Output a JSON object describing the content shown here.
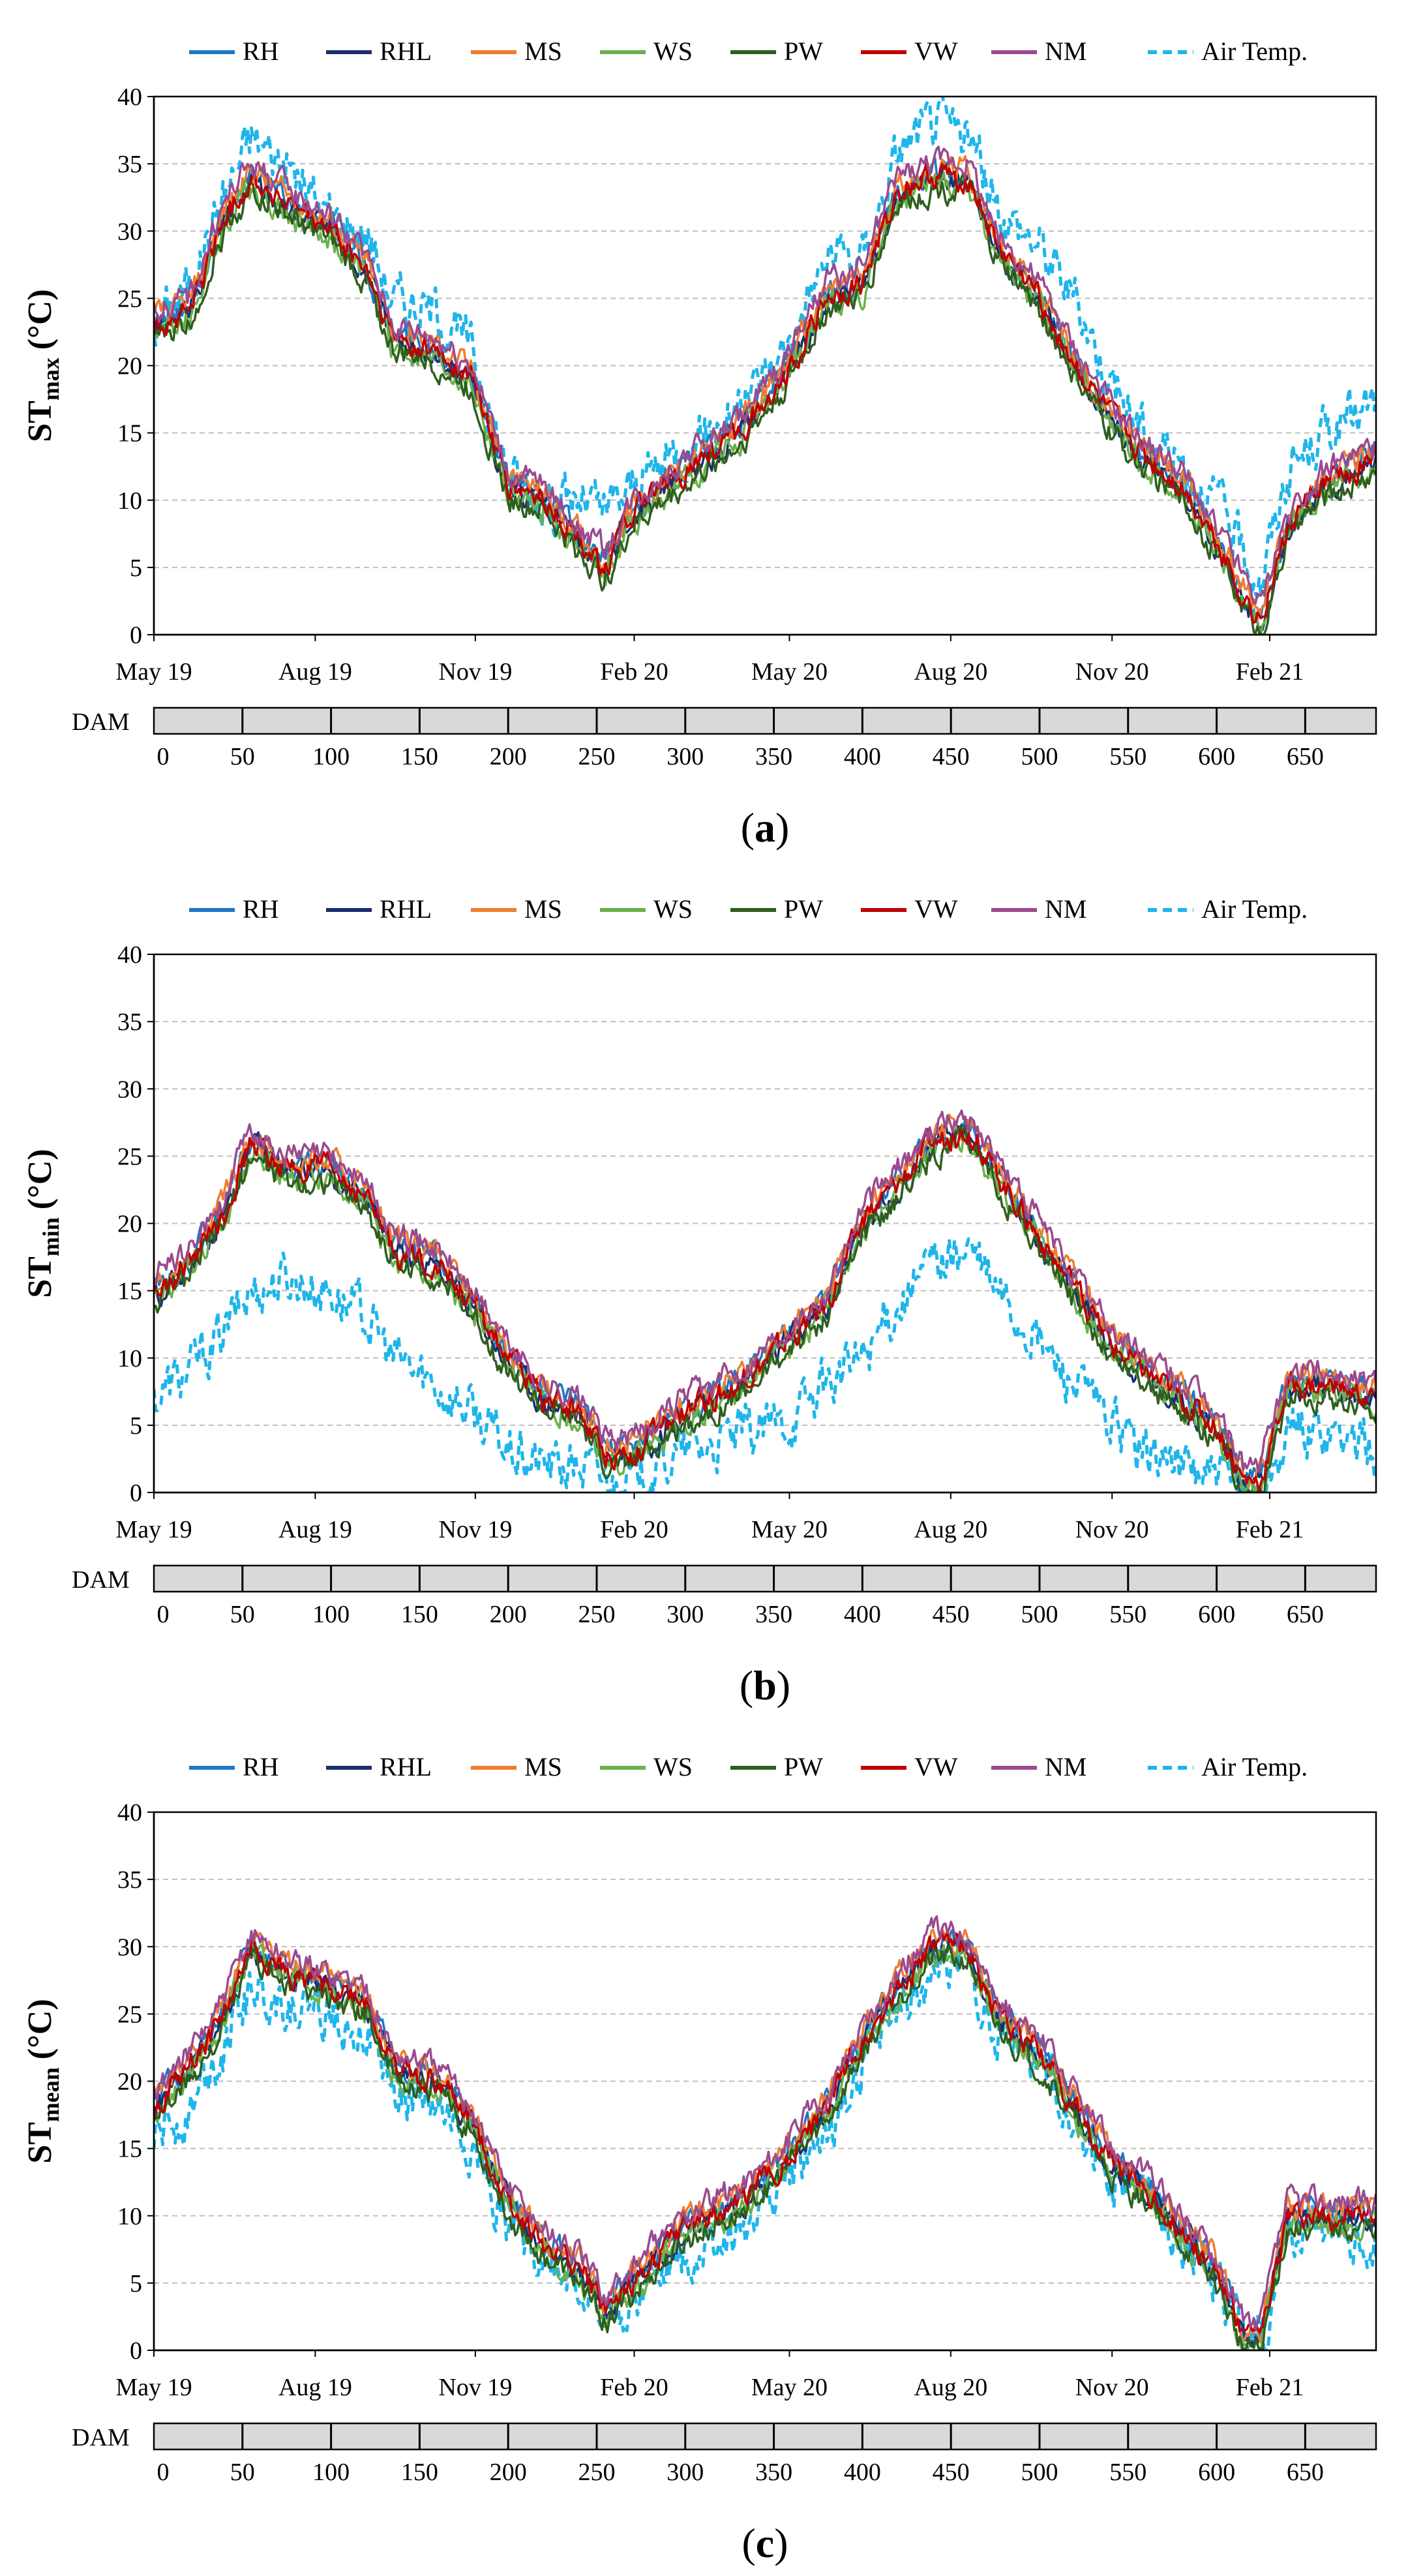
{
  "chart_data": [
    {
      "type": "line",
      "panel_label": "a",
      "ylabel_main": "ST",
      "ylabel_sub": "max",
      "ylabel_unit": "(°C)",
      "ylim": [
        0,
        40
      ],
      "yticks": [
        "0",
        "5",
        "10",
        "15",
        "20",
        "25",
        "30",
        "35",
        "40"
      ],
      "x_tick_labels": [
        "May 19",
        "Aug 19",
        "Nov 19",
        "Feb 20",
        "May 20",
        "Aug 20",
        "Nov 20",
        "Feb 21"
      ],
      "dam_axis_label": "DAM",
      "dam_ticks": [
        "0",
        "50",
        "100",
        "150",
        "200",
        "250",
        "300",
        "350",
        "400",
        "450",
        "500",
        "550",
        "600",
        "650"
      ],
      "legend": [
        "RH",
        "RHL",
        "MS",
        "WS",
        "PW",
        "VW",
        "NM",
        "Air Temp."
      ],
      "dam_range": [
        0,
        690
      ],
      "series_keypoints": {
        "soil": [
          [
            0,
            23
          ],
          [
            20,
            24
          ],
          [
            40,
            31
          ],
          [
            55,
            34
          ],
          [
            75,
            32
          ],
          [
            100,
            30
          ],
          [
            120,
            27
          ],
          [
            135,
            22
          ],
          [
            160,
            21
          ],
          [
            180,
            19
          ],
          [
            200,
            11
          ],
          [
            220,
            10
          ],
          [
            240,
            7
          ],
          [
            255,
            5
          ],
          [
            270,
            9
          ],
          [
            300,
            12
          ],
          [
            330,
            15
          ],
          [
            355,
            19
          ],
          [
            380,
            25
          ],
          [
            400,
            26
          ],
          [
            420,
            33
          ],
          [
            440,
            34
          ],
          [
            460,
            34
          ],
          [
            475,
            29
          ],
          [
            500,
            25
          ],
          [
            520,
            20
          ],
          [
            540,
            16
          ],
          [
            560,
            13
          ],
          [
            580,
            11
          ],
          [
            600,
            7
          ],
          [
            615,
            3
          ],
          [
            625,
            1
          ],
          [
            640,
            8
          ],
          [
            660,
            11
          ],
          [
            690,
            13
          ]
        ],
        "air": [
          [
            0,
            23
          ],
          [
            20,
            26
          ],
          [
            40,
            33
          ],
          [
            55,
            37
          ],
          [
            75,
            35
          ],
          [
            100,
            31
          ],
          [
            120,
            30
          ],
          [
            135,
            25
          ],
          [
            160,
            24
          ],
          [
            180,
            21
          ],
          [
            200,
            12
          ],
          [
            220,
            10
          ],
          [
            240,
            10
          ],
          [
            255,
            9
          ],
          [
            270,
            11
          ],
          [
            300,
            14
          ],
          [
            330,
            17
          ],
          [
            355,
            21
          ],
          [
            380,
            28
          ],
          [
            400,
            28
          ],
          [
            420,
            36
          ],
          [
            440,
            38
          ],
          [
            460,
            37
          ],
          [
            475,
            32
          ],
          [
            500,
            29
          ],
          [
            520,
            25
          ],
          [
            540,
            19
          ],
          [
            560,
            15
          ],
          [
            580,
            13
          ],
          [
            600,
            10
          ],
          [
            615,
            6
          ],
          [
            625,
            4
          ],
          [
            640,
            12
          ],
          [
            660,
            15
          ],
          [
            690,
            17
          ]
        ]
      }
    },
    {
      "type": "line",
      "panel_label": "b",
      "ylabel_main": "ST",
      "ylabel_sub": "min",
      "ylabel_unit": "(°C)",
      "ylim": [
        0,
        40
      ],
      "yticks": [
        "0",
        "5",
        "10",
        "15",
        "20",
        "25",
        "30",
        "35",
        "40"
      ],
      "x_tick_labels": [
        "May 19",
        "Aug 19",
        "Nov 19",
        "Feb 20",
        "May 20",
        "Aug 20",
        "Nov 20",
        "Feb 21"
      ],
      "dam_axis_label": "DAM",
      "dam_ticks": [
        "0",
        "50",
        "100",
        "150",
        "200",
        "250",
        "300",
        "350",
        "400",
        "450",
        "500",
        "550",
        "600",
        "650"
      ],
      "legend": [
        "RH",
        "RHL",
        "MS",
        "WS",
        "PW",
        "VW",
        "NM",
        "Air Temp."
      ],
      "dam_range": [
        0,
        690
      ],
      "series_keypoints": {
        "soil": [
          [
            0,
            15
          ],
          [
            20,
            17
          ],
          [
            40,
            21
          ],
          [
            55,
            26
          ],
          [
            75,
            24
          ],
          [
            100,
            24
          ],
          [
            120,
            22
          ],
          [
            135,
            18
          ],
          [
            160,
            17
          ],
          [
            180,
            14
          ],
          [
            200,
            10
          ],
          [
            220,
            7
          ],
          [
            240,
            6
          ],
          [
            255,
            3
          ],
          [
            270,
            3
          ],
          [
            300,
            6
          ],
          [
            330,
            8
          ],
          [
            355,
            11
          ],
          [
            380,
            14
          ],
          [
            400,
            20
          ],
          [
            420,
            23
          ],
          [
            440,
            26
          ],
          [
            460,
            27
          ],
          [
            475,
            24
          ],
          [
            500,
            19
          ],
          [
            520,
            15
          ],
          [
            540,
            11
          ],
          [
            560,
            9
          ],
          [
            580,
            7
          ],
          [
            600,
            5
          ],
          [
            615,
            1
          ],
          [
            625,
            1
          ],
          [
            640,
            8
          ],
          [
            660,
            8
          ],
          [
            690,
            7
          ]
        ],
        "air": [
          [
            0,
            7
          ],
          [
            20,
            9
          ],
          [
            40,
            12
          ],
          [
            55,
            15
          ],
          [
            75,
            16
          ],
          [
            100,
            15
          ],
          [
            120,
            13
          ],
          [
            135,
            10
          ],
          [
            160,
            8
          ],
          [
            180,
            6
          ],
          [
            200,
            3
          ],
          [
            220,
            2
          ],
          [
            240,
            2
          ],
          [
            255,
            1
          ],
          [
            270,
            1
          ],
          [
            300,
            3
          ],
          [
            330,
            4
          ],
          [
            355,
            5
          ],
          [
            380,
            8
          ],
          [
            400,
            10
          ],
          [
            420,
            14
          ],
          [
            440,
            17
          ],
          [
            460,
            18
          ],
          [
            475,
            15
          ],
          [
            500,
            11
          ],
          [
            520,
            8
          ],
          [
            540,
            5
          ],
          [
            560,
            3
          ],
          [
            580,
            2
          ],
          [
            600,
            1
          ],
          [
            615,
            0
          ],
          [
            625,
            0
          ],
          [
            640,
            4
          ],
          [
            660,
            5
          ],
          [
            690,
            3
          ]
        ]
      }
    },
    {
      "type": "line",
      "panel_label": "c",
      "ylabel_main": "ST",
      "ylabel_sub": "mean",
      "ylabel_unit": "(°C)",
      "ylim": [
        0,
        40
      ],
      "yticks": [
        "0",
        "5",
        "10",
        "15",
        "20",
        "25",
        "30",
        "35",
        "40"
      ],
      "x_tick_labels": [
        "May 19",
        "Aug 19",
        "Nov 19",
        "Feb 20",
        "May 20",
        "Aug 20",
        "Nov 20",
        "Feb 21"
      ],
      "dam_axis_label": "DAM",
      "dam_ticks": [
        "0",
        "50",
        "100",
        "150",
        "200",
        "250",
        "300",
        "350",
        "400",
        "450",
        "500",
        "550",
        "600",
        "650"
      ],
      "legend": [
        "RH",
        "RHL",
        "MS",
        "WS",
        "PW",
        "VW",
        "NM",
        "Air Temp."
      ],
      "dam_range": [
        0,
        690
      ],
      "series_keypoints": {
        "soil": [
          [
            0,
            18
          ],
          [
            20,
            21
          ],
          [
            40,
            25
          ],
          [
            55,
            30
          ],
          [
            75,
            28
          ],
          [
            100,
            27
          ],
          [
            120,
            26
          ],
          [
            135,
            21
          ],
          [
            160,
            20
          ],
          [
            180,
            17
          ],
          [
            200,
            11
          ],
          [
            220,
            8
          ],
          [
            240,
            6
          ],
          [
            255,
            3
          ],
          [
            270,
            5
          ],
          [
            300,
            9
          ],
          [
            330,
            11
          ],
          [
            355,
            14
          ],
          [
            380,
            18
          ],
          [
            400,
            23
          ],
          [
            420,
            27
          ],
          [
            440,
            30
          ],
          [
            460,
            30
          ],
          [
            475,
            25
          ],
          [
            500,
            22
          ],
          [
            520,
            18
          ],
          [
            540,
            14
          ],
          [
            560,
            12
          ],
          [
            580,
            9
          ],
          [
            600,
            6
          ],
          [
            615,
            1
          ],
          [
            625,
            1
          ],
          [
            640,
            10
          ],
          [
            660,
            10
          ],
          [
            690,
            10
          ]
        ],
        "air": [
          [
            0,
            16
          ],
          [
            20,
            18
          ],
          [
            40,
            23
          ],
          [
            55,
            27
          ],
          [
            75,
            26
          ],
          [
            100,
            25
          ],
          [
            120,
            24
          ],
          [
            135,
            19
          ],
          [
            160,
            18
          ],
          [
            180,
            15
          ],
          [
            200,
            9
          ],
          [
            220,
            7
          ],
          [
            240,
            5
          ],
          [
            255,
            2
          ],
          [
            270,
            4
          ],
          [
            300,
            7
          ],
          [
            330,
            9
          ],
          [
            355,
            12
          ],
          [
            380,
            16
          ],
          [
            400,
            21
          ],
          [
            420,
            25
          ],
          [
            440,
            28
          ],
          [
            460,
            29
          ],
          [
            475,
            24
          ],
          [
            500,
            21
          ],
          [
            520,
            17
          ],
          [
            540,
            13
          ],
          [
            560,
            11
          ],
          [
            580,
            8
          ],
          [
            600,
            5
          ],
          [
            615,
            1
          ],
          [
            625,
            0
          ],
          [
            640,
            9
          ],
          [
            660,
            9
          ],
          [
            690,
            8
          ]
        ]
      }
    }
  ],
  "series_colors": {
    "RH": "#1f77c4",
    "RHL": "#1b2f6e",
    "MS": "#ee7d31",
    "WS": "#6ab04c",
    "PW": "#2e5e1e",
    "VW": "#c00000",
    "NM": "#9a4a8f",
    "Air Temp.": "#1fb5ea"
  },
  "soil_offsets": {
    "RH": 0.3,
    "RHL": -0.2,
    "MS": 0.6,
    "WS": -0.6,
    "PW": -0.9,
    "VW": 0.0,
    "NM": 1.1
  }
}
